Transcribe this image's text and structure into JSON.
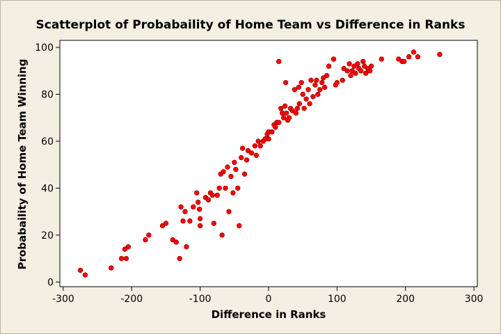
{
  "chart_data": {
    "type": "scatter",
    "title": "Scatterplot of Probabaility of Home Team vs Difference in Ranks",
    "xlabel": "Difference in Ranks",
    "ylabel": "Probabaility of Home Team Winning",
    "xlim": [
      -305,
      305
    ],
    "ylim": [
      -2,
      103
    ],
    "xticks": [
      -300,
      -200,
      -100,
      0,
      100,
      200,
      300
    ],
    "yticks": [
      0,
      20,
      40,
      60,
      80,
      100
    ],
    "marker_color": "#ff0000",
    "marker_edge": "#990000",
    "grid": false,
    "points": [
      {
        "x": -275,
        "y": 5
      },
      {
        "x": -268,
        "y": 3
      },
      {
        "x": -230,
        "y": 6
      },
      {
        "x": -215,
        "y": 10
      },
      {
        "x": -210,
        "y": 14
      },
      {
        "x": -208,
        "y": 10
      },
      {
        "x": -205,
        "y": 15
      },
      {
        "x": -180,
        "y": 18
      },
      {
        "x": -175,
        "y": 20
      },
      {
        "x": -155,
        "y": 24
      },
      {
        "x": -150,
        "y": 25
      },
      {
        "x": -140,
        "y": 18
      },
      {
        "x": -135,
        "y": 17
      },
      {
        "x": -130,
        "y": 10
      },
      {
        "x": -128,
        "y": 32
      },
      {
        "x": -125,
        "y": 26
      },
      {
        "x": -122,
        "y": 30
      },
      {
        "x": -120,
        "y": 15
      },
      {
        "x": -115,
        "y": 26
      },
      {
        "x": -110,
        "y": 32
      },
      {
        "x": -105,
        "y": 38
      },
      {
        "x": -103,
        "y": 34
      },
      {
        "x": -101,
        "y": 31
      },
      {
        "x": -100,
        "y": 24
      },
      {
        "x": -100,
        "y": 27
      },
      {
        "x": -92,
        "y": 36
      },
      {
        "x": -88,
        "y": 35
      },
      {
        "x": -85,
        "y": 38
      },
      {
        "x": -82,
        "y": 37
      },
      {
        "x": -80,
        "y": 25
      },
      {
        "x": -75,
        "y": 37
      },
      {
        "x": -72,
        "y": 40
      },
      {
        "x": -70,
        "y": 46
      },
      {
        "x": -68,
        "y": 20
      },
      {
        "x": -66,
        "y": 47
      },
      {
        "x": -63,
        "y": 40
      },
      {
        "x": -60,
        "y": 49
      },
      {
        "x": -58,
        "y": 30
      },
      {
        "x": -55,
        "y": 45
      },
      {
        "x": -52,
        "y": 38
      },
      {
        "x": -50,
        "y": 51
      },
      {
        "x": -48,
        "y": 48
      },
      {
        "x": -45,
        "y": 40
      },
      {
        "x": -43,
        "y": 24
      },
      {
        "x": -40,
        "y": 53
      },
      {
        "x": -38,
        "y": 57
      },
      {
        "x": -35,
        "y": 46
      },
      {
        "x": -32,
        "y": 52
      },
      {
        "x": -30,
        "y": 56
      },
      {
        "x": -25,
        "y": 55
      },
      {
        "x": -20,
        "y": 58
      },
      {
        "x": -18,
        "y": 54
      },
      {
        "x": -15,
        "y": 60
      },
      {
        "x": -12,
        "y": 58
      },
      {
        "x": -8,
        "y": 60
      },
      {
        "x": -5,
        "y": 61
      },
      {
        "x": -2,
        "y": 63
      },
      {
        "x": 0,
        "y": 64
      },
      {
        "x": 0,
        "y": 61
      },
      {
        "x": 5,
        "y": 64
      },
      {
        "x": 8,
        "y": 67
      },
      {
        "x": 10,
        "y": 66
      },
      {
        "x": 12,
        "y": 68
      },
      {
        "x": 15,
        "y": 68
      },
      {
        "x": 15,
        "y": 94
      },
      {
        "x": 18,
        "y": 74
      },
      {
        "x": 20,
        "y": 72
      },
      {
        "x": 22,
        "y": 70
      },
      {
        "x": 24,
        "y": 75
      },
      {
        "x": 25,
        "y": 85
      },
      {
        "x": 26,
        "y": 72
      },
      {
        "x": 28,
        "y": 69
      },
      {
        "x": 30,
        "y": 70
      },
      {
        "x": 32,
        "y": 74
      },
      {
        "x": 35,
        "y": 73
      },
      {
        "x": 38,
        "y": 82
      },
      {
        "x": 40,
        "y": 72
      },
      {
        "x": 42,
        "y": 74
      },
      {
        "x": 44,
        "y": 83
      },
      {
        "x": 45,
        "y": 76
      },
      {
        "x": 48,
        "y": 85
      },
      {
        "x": 50,
        "y": 80
      },
      {
        "x": 52,
        "y": 74
      },
      {
        "x": 55,
        "y": 78
      },
      {
        "x": 58,
        "y": 82
      },
      {
        "x": 60,
        "y": 76
      },
      {
        "x": 62,
        "y": 86
      },
      {
        "x": 65,
        "y": 79
      },
      {
        "x": 68,
        "y": 84
      },
      {
        "x": 70,
        "y": 86
      },
      {
        "x": 72,
        "y": 80
      },
      {
        "x": 75,
        "y": 82
      },
      {
        "x": 78,
        "y": 85
      },
      {
        "x": 80,
        "y": 87
      },
      {
        "x": 82,
        "y": 83
      },
      {
        "x": 85,
        "y": 88
      },
      {
        "x": 88,
        "y": 92
      },
      {
        "x": 95,
        "y": 95
      },
      {
        "x": 98,
        "y": 84
      },
      {
        "x": 100,
        "y": 85
      },
      {
        "x": 108,
        "y": 86
      },
      {
        "x": 110,
        "y": 91
      },
      {
        "x": 115,
        "y": 90
      },
      {
        "x": 118,
        "y": 93
      },
      {
        "x": 120,
        "y": 88
      },
      {
        "x": 122,
        "y": 90
      },
      {
        "x": 125,
        "y": 92
      },
      {
        "x": 127,
        "y": 89
      },
      {
        "x": 130,
        "y": 93
      },
      {
        "x": 132,
        "y": 91
      },
      {
        "x": 135,
        "y": 90
      },
      {
        "x": 138,
        "y": 94
      },
      {
        "x": 140,
        "y": 92
      },
      {
        "x": 142,
        "y": 89
      },
      {
        "x": 145,
        "y": 91
      },
      {
        "x": 148,
        "y": 90
      },
      {
        "x": 150,
        "y": 92
      },
      {
        "x": 165,
        "y": 95
      },
      {
        "x": 190,
        "y": 95
      },
      {
        "x": 195,
        "y": 94
      },
      {
        "x": 198,
        "y": 94
      },
      {
        "x": 205,
        "y": 96
      },
      {
        "x": 212,
        "y": 98
      },
      {
        "x": 218,
        "y": 96
      },
      {
        "x": 250,
        "y": 97
      }
    ]
  }
}
